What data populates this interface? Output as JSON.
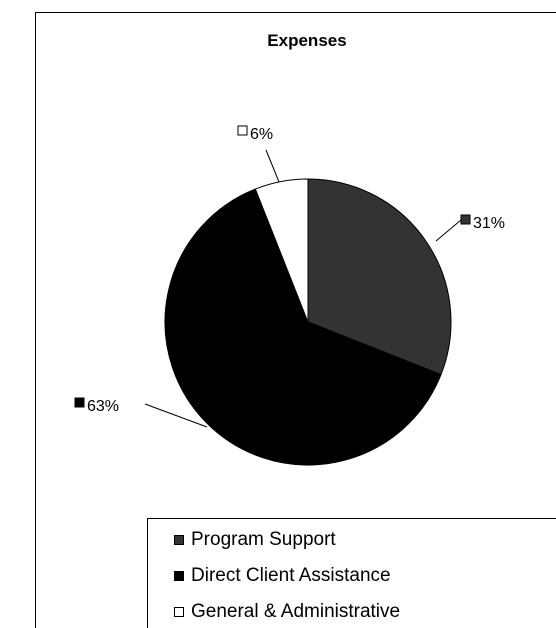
{
  "chart_data": {
    "type": "pie",
    "title": "Expenses",
    "categories": [
      "Program Support",
      "Direct Client Assistance",
      "General & Administrative"
    ],
    "values": [
      31,
      63,
      6
    ],
    "data_labels": [
      "31%",
      "63%",
      "6%"
    ],
    "colors": [
      "#333333",
      "#000000",
      "#ffffff"
    ],
    "legend_position": "bottom"
  }
}
